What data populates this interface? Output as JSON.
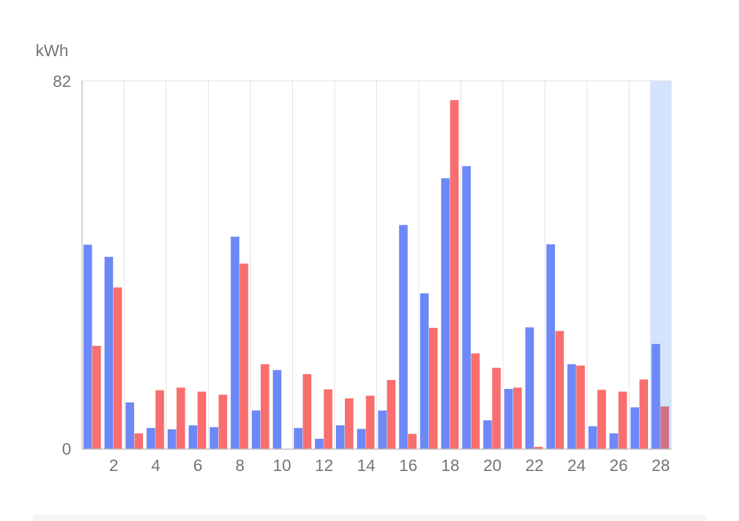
{
  "chart_data": {
    "type": "bar",
    "ylabel": "kWh",
    "ylim": [
      0,
      82
    ],
    "y_ticks": [
      "82",
      "0"
    ],
    "x_ticks": [
      "2",
      "4",
      "6",
      "8",
      "10",
      "12",
      "14",
      "16",
      "18",
      "20",
      "22",
      "24",
      "26",
      "28"
    ],
    "x": [
      1,
      2,
      3,
      4,
      5,
      6,
      7,
      8,
      9,
      10,
      11,
      12,
      13,
      14,
      15,
      16,
      17,
      18,
      19,
      20,
      21,
      22,
      23,
      24,
      25,
      26,
      27,
      28
    ],
    "grid": true,
    "legend": "none",
    "highlighted_x": 28,
    "series": [
      {
        "color": "#6d88f7",
        "values": [
          45.5,
          42.8,
          10.4,
          4.7,
          4.4,
          5.3,
          4.9,
          47.3,
          8.6,
          17.6,
          4.7,
          2.3,
          5.3,
          4.5,
          8.6,
          49.9,
          34.7,
          60.3,
          63.0,
          6.4,
          13.4,
          27.1,
          45.6,
          18.9,
          5.1,
          3.5,
          9.3,
          23.4
        ]
      },
      {
        "color": "#f96e6e",
        "values": [
          23.0,
          36.0,
          3.5,
          13.1,
          13.7,
          12.8,
          12.1,
          41.3,
          18.9,
          0.0,
          16.7,
          13.3,
          11.3,
          11.9,
          15.4,
          3.4,
          27.0,
          77.7,
          21.3,
          18.1,
          13.7,
          0.5,
          26.3,
          18.6,
          13.2,
          12.8,
          15.5,
          9.5
        ]
      }
    ]
  },
  "colors": {
    "highlight_band": "#d3e3fc",
    "grid": "#e0e0e0",
    "axis": "#bdbdbd",
    "highlight_red": "#d07383"
  }
}
